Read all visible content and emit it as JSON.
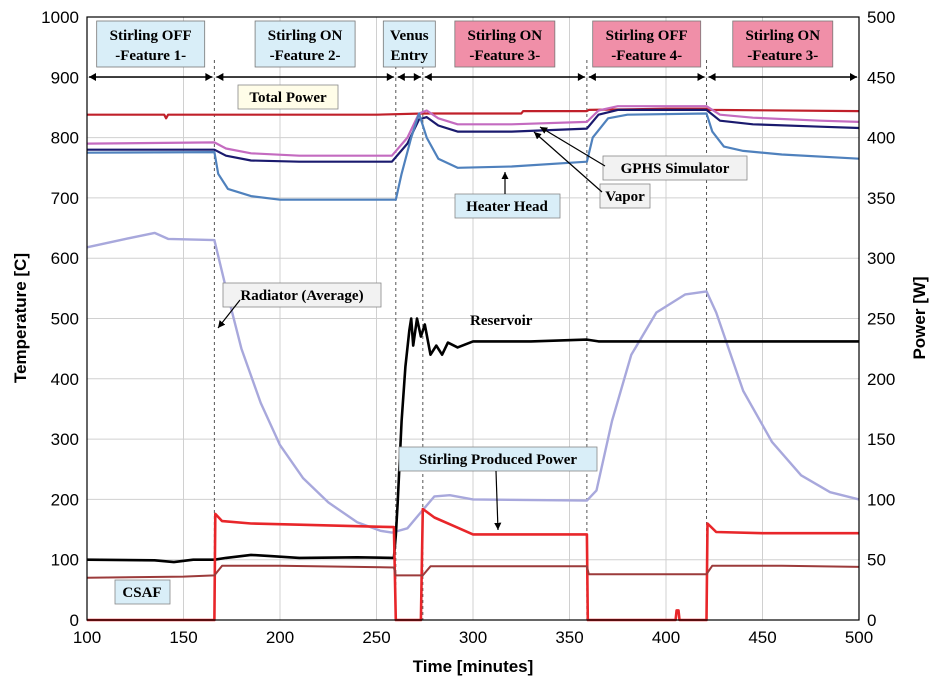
{
  "chart_data": {
    "type": "line",
    "xlabel": "Time [minutes]",
    "ylabel_left": "Temperature [C]",
    "ylabel_right": "Power [W]",
    "xlim": [
      100,
      500
    ],
    "ylim_left": [
      0,
      1000
    ],
    "ylim_right": [
      0,
      500
    ],
    "x_ticks": [
      100,
      150,
      200,
      250,
      300,
      350,
      400,
      450,
      500
    ],
    "y_left_ticks": [
      0,
      100,
      200,
      300,
      400,
      500,
      600,
      700,
      800,
      900,
      1000
    ],
    "y_right_ticks": [
      0,
      50,
      100,
      150,
      200,
      250,
      300,
      350,
      400,
      450,
      500
    ],
    "grid": true,
    "phase_boundaries": [
      166,
      260,
      274,
      359,
      421
    ],
    "phases": [
      {
        "line1": "Stirling OFF",
        "line2": "-Feature 1-",
        "x_start": 100,
        "x_end": 166,
        "fill": "#d9eef8"
      },
      {
        "line1": "Stirling ON",
        "line2": "-Feature 2-",
        "x_start": 166,
        "x_end": 260,
        "fill": "#d9eef8"
      },
      {
        "line1": "Venus",
        "line2": "Entry",
        "x_start": 260,
        "x_end": 274,
        "fill": "#d9eef8"
      },
      {
        "line1": "Stirling ON",
        "line2": "-Feature 3-",
        "x_start": 274,
        "x_end": 359,
        "fill": "#f08fa8"
      },
      {
        "line1": "Stirling OFF",
        "line2": "-Feature 4-",
        "x_start": 359,
        "x_end": 421,
        "fill": "#f08fa8"
      },
      {
        "line1": "Stirling ON",
        "line2": "-Feature 3-",
        "x_start": 421,
        "x_end": 500,
        "fill": "#f08fa8"
      }
    ],
    "annotations": [
      {
        "text": "Total Power",
        "fill": "#fffde8"
      },
      {
        "text": "GPHS Simulator",
        "fill": "#f2f2f2"
      },
      {
        "text": "Vapor",
        "fill": "#f2f2f2"
      },
      {
        "text": "Heater Head",
        "fill": "#d9eef8"
      },
      {
        "text": "Radiator (Average)",
        "fill": "#f2f2f2"
      },
      {
        "text": "Reservoir",
        "fill": "none"
      },
      {
        "text": "Stirling Produced Power",
        "fill": "#d9eef8"
      },
      {
        "text": "CSAF",
        "fill": "#d9eef8"
      }
    ],
    "series": [
      {
        "axis": "right",
        "color": "#c0202a",
        "width": 2.2,
        "points": [
          [
            100,
            419
          ],
          [
            140,
            419
          ],
          [
            141,
            416
          ],
          [
            142,
            419
          ],
          [
            166,
            419
          ],
          [
            200,
            419
          ],
          [
            250,
            419
          ],
          [
            274,
            420
          ],
          [
            325,
            420
          ],
          [
            326,
            422
          ],
          [
            359,
            422
          ],
          [
            360,
            423
          ],
          [
            400,
            424
          ],
          [
            421,
            424
          ],
          [
            422,
            423
          ],
          [
            500,
            422
          ]
        ]
      },
      {
        "axis": "left",
        "color": "#c46bc0",
        "width": 2.2,
        "points": [
          [
            100,
            790
          ],
          [
            166,
            792
          ],
          [
            172,
            782
          ],
          [
            185,
            774
          ],
          [
            210,
            770
          ],
          [
            258,
            770
          ],
          [
            266,
            800
          ],
          [
            272,
            840
          ],
          [
            276,
            845
          ],
          [
            282,
            832
          ],
          [
            292,
            822
          ],
          [
            320,
            822
          ],
          [
            359,
            826
          ],
          [
            365,
            845
          ],
          [
            375,
            852
          ],
          [
            421,
            852
          ],
          [
            428,
            838
          ],
          [
            445,
            833
          ],
          [
            480,
            828
          ],
          [
            500,
            826
          ]
        ]
      },
      {
        "axis": "left",
        "color": "#1a1a6e",
        "width": 2.2,
        "points": [
          [
            100,
            780
          ],
          [
            166,
            780
          ],
          [
            172,
            770
          ],
          [
            185,
            762
          ],
          [
            210,
            760
          ],
          [
            258,
            760
          ],
          [
            266,
            790
          ],
          [
            272,
            830
          ],
          [
            276,
            834
          ],
          [
            282,
            820
          ],
          [
            292,
            810
          ],
          [
            320,
            810
          ],
          [
            359,
            815
          ],
          [
            365,
            838
          ],
          [
            375,
            846
          ],
          [
            421,
            846
          ],
          [
            428,
            828
          ],
          [
            445,
            822
          ],
          [
            480,
            818
          ],
          [
            500,
            816
          ]
        ]
      },
      {
        "axis": "left",
        "color": "#4f81bd",
        "width": 2.2,
        "points": [
          [
            100,
            775
          ],
          [
            166,
            776
          ],
          [
            168,
            740
          ],
          [
            173,
            715
          ],
          [
            185,
            703
          ],
          [
            200,
            697
          ],
          [
            260,
            697
          ],
          [
            263,
            740
          ],
          [
            268,
            800
          ],
          [
            272,
            840
          ],
          [
            276,
            800
          ],
          [
            282,
            765
          ],
          [
            292,
            750
          ],
          [
            320,
            752
          ],
          [
            359,
            760
          ],
          [
            362,
            800
          ],
          [
            370,
            832
          ],
          [
            380,
            838
          ],
          [
            421,
            840
          ],
          [
            424,
            810
          ],
          [
            430,
            785
          ],
          [
            440,
            778
          ],
          [
            460,
            772
          ],
          [
            500,
            765
          ]
        ]
      },
      {
        "axis": "left",
        "color": "#a8a8dc",
        "width": 2.4,
        "points": [
          [
            100,
            618
          ],
          [
            120,
            632
          ],
          [
            135,
            642
          ],
          [
            142,
            632
          ],
          [
            166,
            630
          ],
          [
            172,
            550
          ],
          [
            180,
            450
          ],
          [
            190,
            360
          ],
          [
            200,
            290
          ],
          [
            212,
            235
          ],
          [
            225,
            195
          ],
          [
            240,
            162
          ],
          [
            252,
            148
          ],
          [
            258,
            145
          ],
          [
            266,
            152
          ],
          [
            272,
            175
          ],
          [
            280,
            205
          ],
          [
            288,
            207
          ],
          [
            300,
            200
          ],
          [
            359,
            198
          ],
          [
            364,
            215
          ],
          [
            372,
            330
          ],
          [
            382,
            440
          ],
          [
            395,
            510
          ],
          [
            410,
            540
          ],
          [
            421,
            545
          ],
          [
            426,
            510
          ],
          [
            440,
            380
          ],
          [
            455,
            295
          ],
          [
            470,
            240
          ],
          [
            485,
            212
          ],
          [
            500,
            200
          ]
        ]
      },
      {
        "axis": "left",
        "color": "#000000",
        "width": 2.6,
        "points": [
          [
            100,
            100
          ],
          [
            135,
            99
          ],
          [
            145,
            96
          ],
          [
            155,
            100
          ],
          [
            166,
            100
          ],
          [
            172,
            103
          ],
          [
            185,
            108
          ],
          [
            195,
            106
          ],
          [
            210,
            103
          ],
          [
            240,
            104
          ],
          [
            259,
            103
          ],
          [
            260,
            140
          ],
          [
            261,
            195
          ],
          [
            263,
            330
          ],
          [
            265,
            420
          ],
          [
            267,
            480
          ],
          [
            268,
            500
          ],
          [
            269,
            455
          ],
          [
            271,
            500
          ],
          [
            273,
            470
          ],
          [
            275,
            490
          ],
          [
            278,
            440
          ],
          [
            281,
            455
          ],
          [
            284,
            440
          ],
          [
            287,
            460
          ],
          [
            292,
            452
          ],
          [
            300,
            462
          ],
          [
            330,
            462
          ],
          [
            359,
            465
          ],
          [
            365,
            462
          ],
          [
            400,
            462
          ],
          [
            500,
            462
          ]
        ]
      },
      {
        "axis": "right",
        "color": "#e8262a",
        "width": 2.6,
        "points": [
          [
            100,
            0
          ],
          [
            166,
            0
          ],
          [
            166.5,
            88
          ],
          [
            170,
            82
          ],
          [
            185,
            80
          ],
          [
            210,
            79
          ],
          [
            259,
            77
          ],
          [
            260,
            0
          ],
          [
            273,
            0
          ],
          [
            274,
            92
          ],
          [
            280,
            85
          ],
          [
            290,
            78
          ],
          [
            300,
            71
          ],
          [
            340,
            71
          ],
          [
            359,
            71
          ],
          [
            359.5,
            0
          ],
          [
            405,
            0
          ],
          [
            405.5,
            8
          ],
          [
            406.5,
            8
          ],
          [
            407,
            0
          ],
          [
            421,
            0
          ],
          [
            421.5,
            80
          ],
          [
            426,
            73
          ],
          [
            450,
            72
          ],
          [
            500,
            72
          ]
        ]
      },
      {
        "axis": "left",
        "color": "#9c3b3b",
        "width": 2.0,
        "points": [
          [
            100,
            70
          ],
          [
            150,
            72
          ],
          [
            166,
            74
          ],
          [
            170,
            90
          ],
          [
            200,
            90
          ],
          [
            259,
            87
          ],
          [
            260,
            74
          ],
          [
            274,
            74
          ],
          [
            278,
            89
          ],
          [
            300,
            89
          ],
          [
            359,
            89
          ],
          [
            360,
            76
          ],
          [
            421,
            76
          ],
          [
            424,
            90
          ],
          [
            460,
            90
          ],
          [
            500,
            88
          ]
        ]
      }
    ]
  }
}
